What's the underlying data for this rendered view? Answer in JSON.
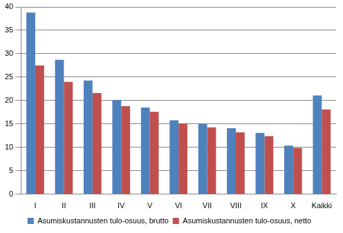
{
  "chart_data": {
    "type": "bar",
    "categories": [
      "I",
      "II",
      "III",
      "IV",
      "V",
      "VI",
      "VII",
      "VIII",
      "IX",
      "X",
      "Kaikki"
    ],
    "series": [
      {
        "name": "Asumiskustannusten tulo-osuus, brutto",
        "color": "#4f81bd",
        "values": [
          38.8,
          28.7,
          24.3,
          20.1,
          18.5,
          15.8,
          15.0,
          14.1,
          13.1,
          10.4,
          21.1
        ]
      },
      {
        "name": "Asumiskustannusten tulo-osuus, netto",
        "color": "#c0504d",
        "values": [
          27.5,
          24.0,
          21.6,
          18.8,
          17.6,
          15.1,
          14.3,
          13.2,
          12.4,
          9.9,
          18.1
        ]
      }
    ],
    "ylim": [
      0,
      40
    ],
    "yticks": [
      0,
      5,
      10,
      15,
      20,
      25,
      30,
      35,
      40
    ],
    "grid": true,
    "legend": "bottom"
  }
}
